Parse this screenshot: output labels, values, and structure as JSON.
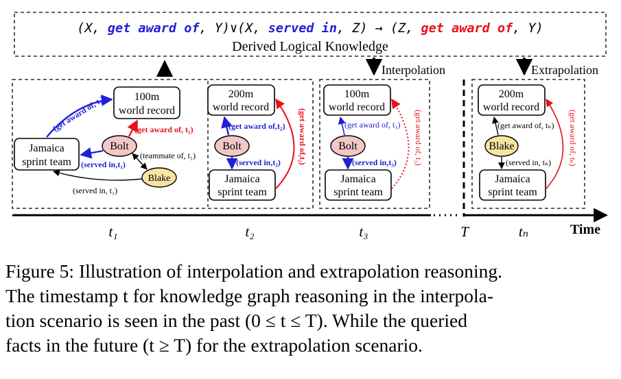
{
  "rule": {
    "p1": "(X, ",
    "rel1": "get award of",
    "p2": ", Y)∨(X, ",
    "rel2": "served in",
    "p3": ", Z) → (Z, ",
    "rel3": "get award of",
    "p4": ", Y)",
    "subtitle": "Derived Logical Knowledge"
  },
  "labels": {
    "interpolation": "Interpolation",
    "extrapolation": "Extrapolation"
  },
  "panels": {
    "t1": {
      "world_record": [
        "100m",
        "world record"
      ],
      "jamaica": [
        "Jamaica",
        "sprint team"
      ],
      "bolt": "Bolt",
      "blake": "Blake",
      "edge_award_blue": "(get award of, t₁)",
      "edge_award_red": "(get award of, t₁)",
      "edge_served_blue": "(served in,t₁)",
      "edge_teammate": "(teammate of, t₁)",
      "edge_served_black": "(served in, t₁)"
    },
    "t2": {
      "world_record": [
        "200m",
        "world record"
      ],
      "jamaica": [
        "Jamaica",
        "sprint team"
      ],
      "bolt": "Bolt",
      "edge_award_blue": "(get award of,t₂)",
      "edge_served_blue": "(served in,t₂)",
      "edge_award_red": "(get award of,t₂)"
    },
    "t3": {
      "world_record": [
        "100m",
        "world record"
      ],
      "jamaica": [
        "Jamaica",
        "sprint team"
      ],
      "bolt": "Bolt",
      "edge_award_blue": "(get award of, t₃)",
      "edge_served_blue": "(served in,t₃)",
      "edge_award_red": "(get award of, t₃)"
    },
    "tn": {
      "world_record": [
        "200m",
        "world record"
      ],
      "jamaica": [
        "Jamaica",
        "sprint team"
      ],
      "blake": "Blake",
      "edge_award_black": "(get award of, tₙ)",
      "edge_served_black": "(served in, tₙ)",
      "edge_award_red": "(get award of, tₙ)"
    }
  },
  "timeline": {
    "ticks": [
      "t₁",
      "t₂",
      "t₃",
      "T",
      "tₙ"
    ],
    "axis_label": "Time"
  },
  "caption": {
    "lines": [
      "Figure 5: Illustration of interpolation and extrapolation reasoning.",
      "The timestamp t for knowledge graph reasoning in the interpola-",
      "tion scenario is seen in the past (0 ≤ t ≤ T). While the queried",
      "facts in the future (t ≥ T) for the extrapolation scenario."
    ]
  },
  "colors": {
    "blue": "#1f1fd6",
    "red": "#e8101a",
    "bolt_fill": "#f4c7c7",
    "blake_fill": "#f6e4a0",
    "black": "#000000"
  }
}
